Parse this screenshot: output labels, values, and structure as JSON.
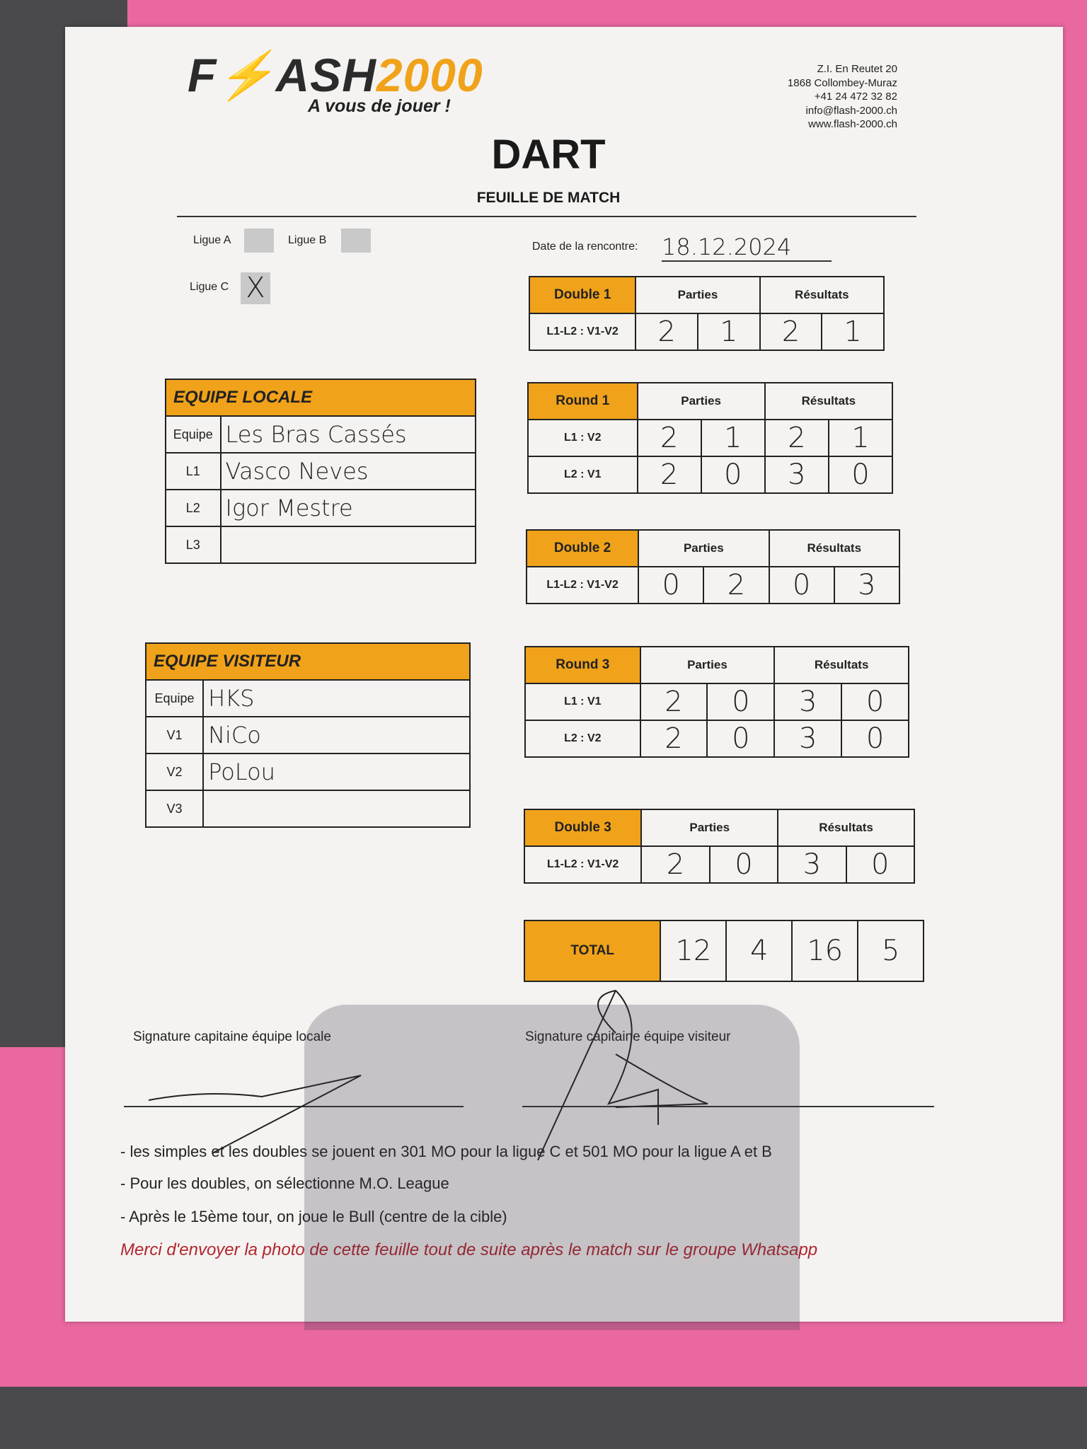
{
  "header": {
    "logo_text": "FLASH2000",
    "tagline": "A vous de jouer !",
    "address": [
      "Z.I. En Reutet 20",
      "1868 Collombey-Muraz",
      "+41 24 472 32 82",
      "info@flash-2000.ch",
      "www.flash-2000.ch"
    ],
    "title": "DART",
    "subtitle": "FEUILLE DE MATCH"
  },
  "league": {
    "a_label": "Ligue A",
    "b_label": "Ligue B",
    "c_label": "Ligue C",
    "c_mark": "X",
    "selected": "Ligue C",
    "date_label": "Date de la rencontre:",
    "date_value": "18.12.2024"
  },
  "local": {
    "title": "EQUIPE LOCALE",
    "rows": [
      {
        "k": "Equipe",
        "v": "Les Bras Cassés"
      },
      {
        "k": "L1",
        "v": "Vasco Neves"
      },
      {
        "k": "L2",
        "v": "Igor Mestre"
      },
      {
        "k": "L3",
        "v": ""
      }
    ]
  },
  "visitor": {
    "title": "EQUIPE VISITEUR",
    "rows": [
      {
        "k": "Equipe",
        "v": "HKS"
      },
      {
        "k": "V1",
        "v": "NiCo"
      },
      {
        "k": "V2",
        "v": "PoLou"
      },
      {
        "k": "V3",
        "v": ""
      }
    ]
  },
  "col_parties": "Parties",
  "col_resultats": "Résultats",
  "matches": [
    {
      "title": "Double 1",
      "rows": [
        {
          "label": "L1-L2 : V1-V2",
          "p": [
            "2",
            "1"
          ],
          "r": [
            "2",
            "1"
          ]
        }
      ]
    },
    {
      "title": "Round 1",
      "rows": [
        {
          "label": "L1  :  V2",
          "p": [
            "2",
            "1"
          ],
          "r": [
            "2",
            "1"
          ]
        },
        {
          "label": "L2  :  V1",
          "p": [
            "2",
            "0"
          ],
          "r": [
            "3",
            "0"
          ]
        }
      ]
    },
    {
      "title": "Double 2",
      "rows": [
        {
          "label": "L1-L2 : V1-V2",
          "p": [
            "0",
            "2"
          ],
          "r": [
            "0",
            "3"
          ]
        }
      ]
    },
    {
      "title": "Round 3",
      "rows": [
        {
          "label": "L1  :  V1",
          "p": [
            "2",
            "0"
          ],
          "r": [
            "3",
            "0"
          ]
        },
        {
          "label": "L2  :  V2",
          "p": [
            "2",
            "0"
          ],
          "r": [
            "3",
            "0"
          ]
        }
      ]
    },
    {
      "title": "Double 3",
      "rows": [
        {
          "label": "L1-L2 : V1-V2",
          "p": [
            "2",
            "0"
          ],
          "r": [
            "3",
            "0"
          ]
        }
      ]
    }
  ],
  "total": {
    "label": "TOTAL",
    "p": [
      "12",
      "4"
    ],
    "r": [
      "16",
      "5"
    ]
  },
  "signatures": {
    "local": "Signature capitaine équipe locale",
    "visitor": "Signature capitaine équipe visiteur"
  },
  "notes": [
    "- les simples  et les doubles se jouent en 301 MO pour la ligue C et 501 MO pour la ligue A et B",
    "- Pour les doubles, on sélectionne M.O. League",
    "- Après le 15ème tour, on joue le Bull (centre de la cible)"
  ],
  "footer_note": "Merci d'envoyer la photo de cette feuille tout de suite après le match sur le groupe Whatsapp",
  "colors": {
    "accent": "#f0a21a",
    "background": "#e8689f",
    "note_red": "#b3252e"
  }
}
